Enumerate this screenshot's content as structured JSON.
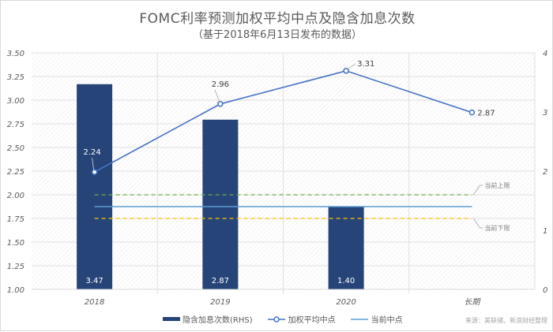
{
  "chart_data": {
    "type": "bar",
    "title": "FOMC利率预测加权平均中点及隐含加息次数",
    "subtitle": "（基于2018年6月13日发布的数据）",
    "categories": [
      "2018",
      "2019",
      "2020",
      "长期"
    ],
    "series": [
      {
        "name": "隐含加息次数(RHS)",
        "type": "bar",
        "axis": "right",
        "color": "#264478",
        "values": [
          3.47,
          2.87,
          1.4,
          null
        ],
        "labels": [
          "3.47",
          "2.87",
          "1.40",
          ""
        ]
      },
      {
        "name": "加权平均中点",
        "type": "line",
        "axis": "left",
        "color": "#4472c4",
        "marker": "circle-open",
        "values": [
          2.24,
          2.96,
          3.31,
          2.87
        ],
        "labels": [
          "2.24",
          "2.96",
          "3.31",
          "2.87"
        ]
      },
      {
        "name": "当前中点",
        "type": "line",
        "axis": "left",
        "color": "#5b9bd5",
        "values": [
          1.875,
          1.875,
          1.875,
          1.875
        ]
      },
      {
        "name": "当前上限",
        "type": "line",
        "style": "dashed",
        "axis": "left",
        "color": "#70ad47",
        "values": [
          2.0,
          2.0,
          2.0,
          2.0
        ],
        "show_in_legend": false
      },
      {
        "name": "当前下限",
        "type": "line",
        "style": "dashed",
        "axis": "left",
        "color": "#ffc000",
        "values": [
          1.75,
          1.75,
          1.75,
          1.75
        ],
        "show_in_legend": false
      }
    ],
    "left_axis": {
      "ylim": [
        1.0,
        3.5
      ],
      "ticks": [
        "3.50",
        "3.25",
        "3.00",
        "2.75",
        "2.50",
        "2.25",
        "2.00",
        "1.75",
        "1.50",
        "1.25",
        "1.00"
      ]
    },
    "right_axis": {
      "ylim": [
        0,
        4
      ],
      "ticks": [
        "4",
        "3",
        "2",
        "1",
        "0"
      ]
    },
    "xlabel": "",
    "ylabel": "",
    "grid": true,
    "legend_position": "bottom",
    "annotations": [
      "当前上限",
      "当前下限"
    ]
  },
  "legend": {
    "items": [
      {
        "label": "隐含加息次数(RHS)"
      },
      {
        "label": "加权平均中点"
      },
      {
        "label": "当前中点"
      }
    ]
  },
  "source": "来源：美联储、新浪财经整理"
}
